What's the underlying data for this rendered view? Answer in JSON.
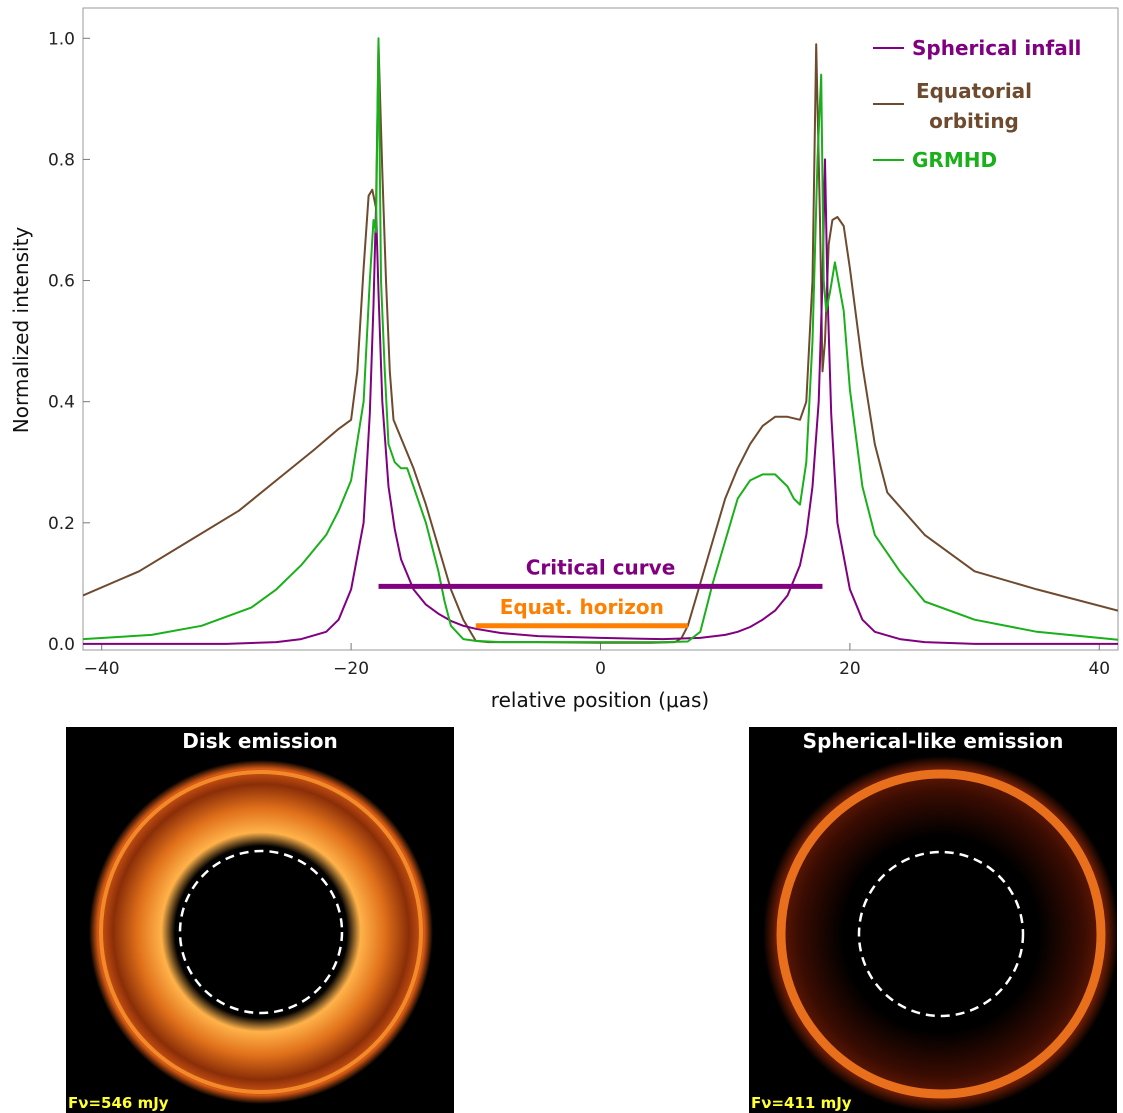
{
  "chart_data": {
    "type": "line",
    "xlabel": "relative position (μas)",
    "ylabel": "Normalized intensity",
    "xlim": [
      -41.5,
      41.5
    ],
    "ylim": [
      -0.01,
      1.05
    ],
    "xticks": [
      -40,
      -20,
      0,
      20,
      40
    ],
    "xtick_labels": [
      "−40",
      "−20",
      "0",
      "20",
      "40"
    ],
    "yticks": [
      0.0,
      0.2,
      0.4,
      0.6,
      0.8,
      1.0
    ],
    "ytick_labels": [
      "0.0",
      "0.2",
      "0.4",
      "0.6",
      "0.8",
      "1.0"
    ],
    "grid": false,
    "legend_position": "top-right",
    "series": [
      {
        "name": "Spherical infall",
        "color": "#800080",
        "x": [
          -41.5,
          -35,
          -30,
          -26,
          -24,
          -22,
          -21,
          -20,
          -19,
          -18.5,
          -18.2,
          -18,
          -17.8,
          -17.5,
          -17,
          -16.5,
          -16,
          -15,
          -14,
          -13,
          -12,
          -11,
          -10,
          -8,
          -5,
          0,
          5,
          8,
          10,
          11,
          12,
          13,
          14,
          15,
          16,
          16.5,
          17,
          17.5,
          17.8,
          18,
          18.2,
          18.5,
          19,
          20,
          21,
          22,
          24,
          26,
          30,
          35,
          41.5
        ],
        "y": [
          0.0,
          0.0,
          0.0,
          0.003,
          0.008,
          0.02,
          0.04,
          0.09,
          0.2,
          0.38,
          0.56,
          0.72,
          0.58,
          0.4,
          0.26,
          0.19,
          0.14,
          0.09,
          0.065,
          0.05,
          0.038,
          0.03,
          0.025,
          0.018,
          0.013,
          0.01,
          0.008,
          0.01,
          0.015,
          0.02,
          0.028,
          0.04,
          0.055,
          0.08,
          0.13,
          0.18,
          0.26,
          0.4,
          0.6,
          0.8,
          0.58,
          0.38,
          0.2,
          0.09,
          0.04,
          0.02,
          0.008,
          0.003,
          0.0,
          0.0,
          0.0
        ]
      },
      {
        "name": "Equatorial orbiting",
        "color": "#6e4a2e",
        "x": [
          -41.5,
          -37,
          -33,
          -29,
          -26,
          -23,
          -21,
          -20,
          -19.5,
          -19,
          -18.6,
          -18.3,
          -18,
          -17.8,
          -17.5,
          -17.2,
          -16.9,
          -16.6,
          -16,
          -15,
          -14,
          -13,
          -12,
          -11,
          -10,
          -9,
          -8,
          -5,
          0,
          4,
          6,
          6.5,
          7,
          8,
          9,
          10,
          11,
          12,
          13,
          14,
          15,
          16,
          16.5,
          17,
          17.3,
          17.6,
          17.8,
          18,
          18.3,
          18.6,
          19,
          19.5,
          20,
          21,
          22,
          23,
          26,
          30,
          35,
          41.5
        ],
        "y": [
          0.08,
          0.12,
          0.17,
          0.22,
          0.27,
          0.32,
          0.355,
          0.37,
          0.45,
          0.62,
          0.74,
          0.75,
          0.72,
          0.99,
          0.78,
          0.6,
          0.45,
          0.37,
          0.34,
          0.29,
          0.23,
          0.16,
          0.09,
          0.04,
          0.005,
          0.003,
          0.003,
          0.003,
          0.002,
          0.002,
          0.003,
          0.01,
          0.03,
          0.1,
          0.17,
          0.24,
          0.29,
          0.33,
          0.36,
          0.375,
          0.375,
          0.37,
          0.4,
          0.6,
          0.99,
          0.7,
          0.45,
          0.5,
          0.66,
          0.7,
          0.705,
          0.69,
          0.62,
          0.46,
          0.33,
          0.25,
          0.18,
          0.12,
          0.09,
          0.055
        ]
      },
      {
        "name": "GRMHD",
        "color": "#1ab01a",
        "x": [
          -41.5,
          -36,
          -32,
          -28,
          -26,
          -24,
          -22,
          -21,
          -20,
          -19,
          -18.5,
          -18.2,
          -18,
          -17.8,
          -17.6,
          -17.3,
          -17,
          -16.5,
          -16,
          -15.5,
          -15,
          -14,
          -13,
          -12.5,
          -12,
          -11,
          -10,
          -8,
          -5,
          0,
          5,
          7,
          8,
          8.5,
          9,
          10,
          11,
          12,
          13,
          14,
          15,
          15.5,
          16,
          16.5,
          17,
          17.4,
          17.7,
          17.9,
          18.1,
          18.4,
          18.8,
          19.5,
          20,
          21,
          22,
          24,
          26,
          30,
          35,
          41.5
        ],
        "y": [
          0.008,
          0.015,
          0.03,
          0.06,
          0.09,
          0.13,
          0.18,
          0.22,
          0.27,
          0.4,
          0.6,
          0.7,
          0.68,
          1.0,
          0.6,
          0.45,
          0.33,
          0.3,
          0.29,
          0.29,
          0.26,
          0.2,
          0.12,
          0.07,
          0.03,
          0.008,
          0.005,
          0.003,
          0.003,
          0.003,
          0.003,
          0.004,
          0.02,
          0.06,
          0.1,
          0.17,
          0.24,
          0.27,
          0.28,
          0.28,
          0.26,
          0.24,
          0.23,
          0.3,
          0.5,
          0.8,
          0.94,
          0.6,
          0.55,
          0.58,
          0.63,
          0.55,
          0.42,
          0.26,
          0.18,
          0.12,
          0.07,
          0.04,
          0.02,
          0.007
        ]
      }
    ],
    "annotations": [
      {
        "label": "Critical curve",
        "color": "#800080",
        "x0": -17.8,
        "x1": 17.8,
        "y": 0.095
      },
      {
        "label": "Equat. horizon",
        "color": "#ff7f00",
        "x0": -10,
        "x1": 7,
        "y": 0.03
      }
    ]
  },
  "legend": {
    "spherical": "Spherical infall",
    "equatorial_line1": "Equatorial",
    "equatorial_line2": "orbiting",
    "grmhd": "GRMHD"
  },
  "panels": {
    "disk": {
      "title": "Disk emission",
      "flux": "Fν=546 mJy"
    },
    "spherical": {
      "title": "Spherical-like emission",
      "flux": "Fν=411 mJy"
    }
  }
}
